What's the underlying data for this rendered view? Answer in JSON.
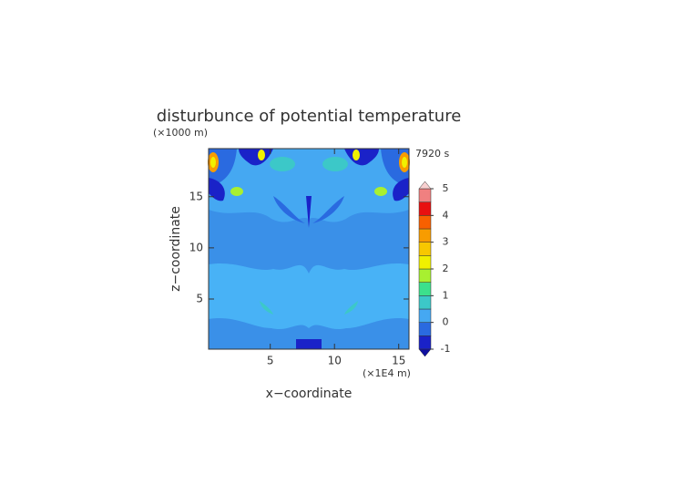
{
  "chart_data": {
    "type": "contour",
    "title": "disturbunce of potential temperature",
    "y_unit": "(×1000 m)",
    "time_label": "7920 s",
    "x_unit": "(×1E4 m)",
    "xlabel": "x−coordinate",
    "ylabel": "z−coordinate",
    "xlim": [
      0.2,
      15.8
    ],
    "xticks": [
      5,
      10,
      15
    ],
    "ylim": [
      0.1,
      19.7
    ],
    "yticks": [
      5,
      10,
      15
    ],
    "levels": [
      -1,
      -0.5,
      0,
      0.5,
      1,
      1.5,
      2,
      2.5,
      3,
      3.5,
      4,
      4.5,
      5
    ],
    "colors": [
      "#1a22c8",
      "#2a6ae0",
      "#45a8f2",
      "#3cc8c8",
      "#3ce08c",
      "#a8f030",
      "#f0f000",
      "#f8c800",
      "#f89c00",
      "#f86000",
      "#e81010",
      "#f08080"
    ],
    "extend_colors": [
      "#1010a0",
      "#f8d0d0"
    ],
    "colorbar_ticks": [
      -1,
      0,
      1,
      2,
      3,
      4,
      5
    ]
  }
}
